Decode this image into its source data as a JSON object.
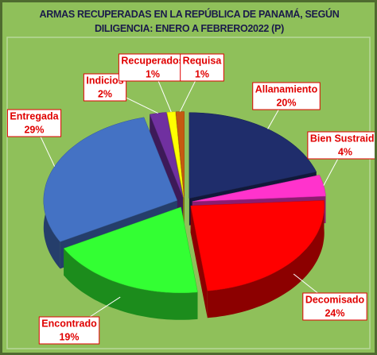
{
  "chart_data": {
    "type": "pie",
    "title": "ARMAS RECUPERADAS EN LA REPÚBLICA DE PANAMÁ, SEGÚN DILIGENCIA: ENERO A FEBRERO2022 (P)",
    "categories": [
      "Allanamiento",
      "Bien Sustraido",
      "Decomisado",
      "Encontrado",
      "Entregada",
      "Indicios",
      "Recuperados",
      "Requisa"
    ],
    "values": [
      20,
      4,
      24,
      19,
      29,
      2,
      1,
      1
    ],
    "value_labels": [
      "20%",
      "4%",
      "24%",
      "19%",
      "29%",
      "2%",
      "1%",
      "1%"
    ],
    "colors": [
      "#1f2d6b",
      "#ff33cc",
      "#ff0000",
      "#33ff33",
      "#4472c4",
      "#7030a0",
      "#ffff00",
      "#c55a11"
    ]
  }
}
